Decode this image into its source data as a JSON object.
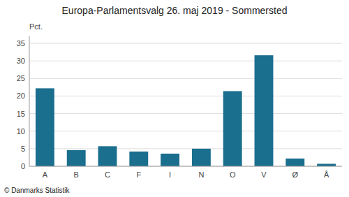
{
  "chart_data": {
    "type": "bar",
    "title": "Europa-Parlamentsvalg 26. maj 2019 - Sommersted",
    "categories": [
      "A",
      "B",
      "C",
      "F",
      "I",
      "N",
      "O",
      "V",
      "Ø",
      "Å"
    ],
    "values": [
      22.2,
      4.6,
      5.7,
      4.2,
      3.6,
      5.0,
      21.4,
      31.6,
      2.2,
      0.7
    ],
    "color": "#1a6e8e",
    "ylabel": "Pct.",
    "footer": "© Danmarks Statistik",
    "ylim": [
      0,
      37
    ],
    "yticks": [
      0,
      5,
      10,
      15,
      20,
      25,
      30,
      35
    ],
    "grid": true
  }
}
